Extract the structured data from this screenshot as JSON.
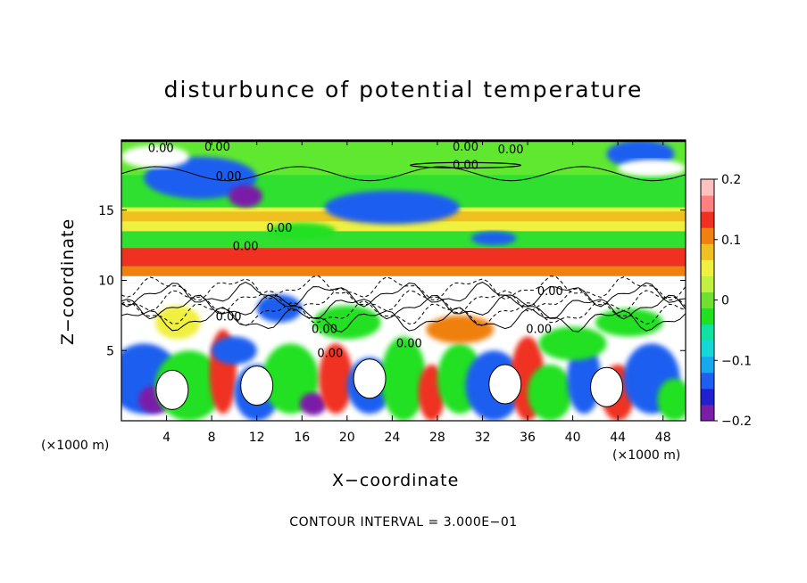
{
  "chart_data": {
    "type": "heatmap",
    "title": "disturbunce of potential temperature",
    "xlabel": "X−coordinate",
    "ylabel": "Z−coordinate",
    "x_unit_left": "(×1000 m)",
    "x_unit_right": "(×1000 m)",
    "xlim": [
      0,
      50
    ],
    "ylim": [
      0,
      20
    ],
    "x_ticks": [
      "4",
      "8",
      "12",
      "16",
      "20",
      "24",
      "28",
      "32",
      "36",
      "40",
      "44",
      "48"
    ],
    "y_ticks": [
      "5",
      "10",
      "15"
    ],
    "colorbar": {
      "range": [
        -0.2,
        0.2
      ],
      "tick_labels": [
        "0.2",
        "0.1",
        "0",
        "−0.1",
        "−0.2"
      ],
      "colors": [
        "#7a1ea8",
        "#2020d0",
        "#1e5ef0",
        "#18a8f0",
        "#14d8d8",
        "#10e0a0",
        "#20e020",
        "#70e030",
        "#c0f040",
        "#f0f040",
        "#f0c020",
        "#f08010",
        "#f03020",
        "#ff8080",
        "#ffc0c0"
      ]
    },
    "contour_labels": [
      "0.00",
      "0.00",
      "0.00",
      "0.00",
      "0.00",
      "0.00",
      "0.00",
      "0.00",
      "0.00",
      "0.00",
      "0.00",
      "0.00"
    ],
    "footnote": "CONTOUR INTERVAL = 3.000E−01",
    "grid": false
  }
}
